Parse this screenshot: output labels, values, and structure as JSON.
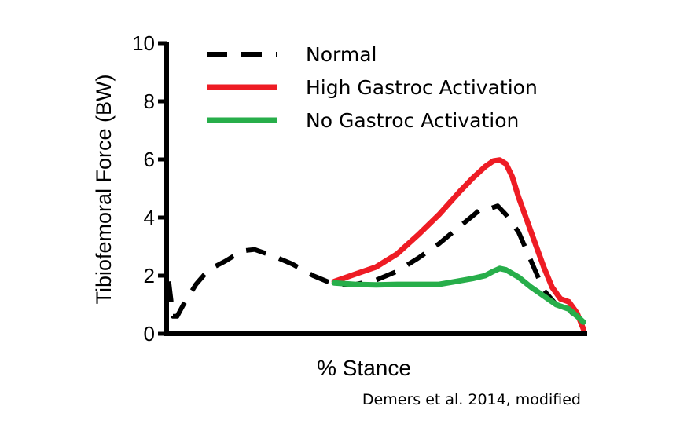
{
  "chart_data": {
    "type": "line",
    "title": "",
    "xlabel": "% Stance",
    "ylabel": "Tibiofemoral Force (BW)",
    "xlim": [
      0,
      100
    ],
    "ylim": [
      0,
      10
    ],
    "yticks": [
      0,
      2,
      4,
      6,
      8,
      10
    ],
    "grid": false,
    "legend_position": "top-left",
    "series": [
      {
        "name": "Normal",
        "color": "#000000",
        "style": "dashed",
        "x": [
          0.5,
          1.5,
          2.5,
          4,
          7,
          10,
          14,
          18,
          21,
          25,
          30,
          35,
          40,
          45,
          50,
          55,
          60,
          65,
          70,
          73,
          75,
          77,
          79,
          81,
          84,
          87,
          90,
          93,
          96,
          98,
          99.5
        ],
        "y": [
          1.8,
          0.6,
          0.6,
          1.0,
          1.7,
          2.2,
          2.5,
          2.85,
          2.9,
          2.7,
          2.4,
          2.0,
          1.7,
          1.7,
          1.85,
          2.15,
          2.6,
          3.1,
          3.7,
          4.05,
          4.3,
          4.3,
          4.4,
          4.1,
          3.5,
          2.5,
          1.5,
          1.0,
          0.8,
          0.6,
          0.4
        ]
      },
      {
        "name": "High Gastroc Activation",
        "color": "#ee1c24",
        "style": "solid",
        "x": [
          40,
          45,
          50,
          55,
          60,
          65,
          70,
          73,
          76,
          78,
          79.5,
          81,
          82.5,
          84,
          86,
          88,
          90,
          92,
          94,
          96,
          97,
          98,
          99.5
        ],
        "y": [
          1.8,
          2.05,
          2.3,
          2.75,
          3.4,
          4.1,
          4.9,
          5.35,
          5.75,
          5.95,
          5.98,
          5.85,
          5.4,
          4.7,
          3.9,
          3.1,
          2.3,
          1.6,
          1.2,
          1.1,
          0.9,
          0.7,
          0.15
        ]
      },
      {
        "name": "No Gastroc Activation",
        "color": "#27ae4a",
        "style": "solid",
        "x": [
          40,
          45,
          50,
          55,
          60,
          65,
          69,
          73,
          76,
          78,
          79.5,
          81,
          84,
          87,
          90,
          93,
          96,
          98,
          99.5
        ],
        "y": [
          1.75,
          1.7,
          1.68,
          1.7,
          1.7,
          1.7,
          1.8,
          1.9,
          2.0,
          2.15,
          2.25,
          2.2,
          1.95,
          1.6,
          1.3,
          1.0,
          0.85,
          0.6,
          0.4
        ]
      }
    ],
    "annotation": "Demers et al. 2014, modified"
  }
}
